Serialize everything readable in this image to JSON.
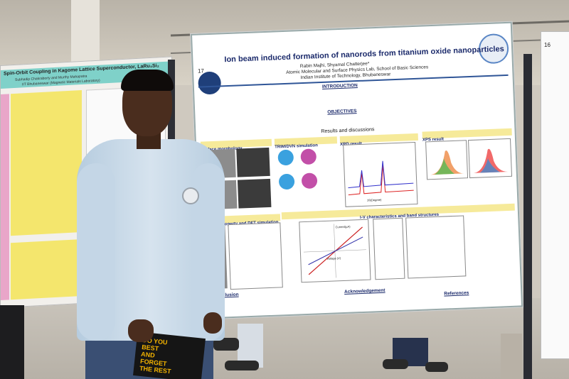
{
  "scene": {
    "description_free": true
  },
  "poster_left": {
    "title": "Spin-Orbit Coupling in Kagome Lattice Superconductor, LaRu₃Si₂",
    "authors": "Subhadip Chakraborty and Murthy Mahapatra",
    "affiliation": "IIT Bhubaneswar (Magnetic Materials Laboratory)"
  },
  "poster_center": {
    "number": "17",
    "title": "Ion beam induced formation of nanorods from titanium oxide nanoparticles",
    "authors": "Rabin Majhi, Shyamal Chatterjee*",
    "lab": "Atomic Molecular and Surface Physics Lab, School of Basic Sciences",
    "institute": "Indian Institute of Technology, Bhubaneswar",
    "sections": {
      "introduction": "INTRODUCTION",
      "objectives": "OBJECTIVES",
      "results": "Results and discussions",
      "surface_morphology": "Surface morphology",
      "trim_simulation": "TRIM/DVN simulation",
      "xrd": "XRD result",
      "xps": "XPS result",
      "wetting": "Wetting property and DFT simulation",
      "iv": "I-V characteristics and band structures",
      "conclusion": "Conclusion",
      "acknowledgement": "Acknowledgement",
      "references": "References"
    },
    "axis_labels": {
      "xrd_x": "2θ(Degree)",
      "iv_x": "Voltage (V)",
      "iv_y": "Current(µA)"
    }
  },
  "poster_right": {
    "number": "16"
  },
  "book": {
    "cover_text": "DO YOU\nBEST\nAND\nFORGET\nTHE REST"
  },
  "colors": {
    "poster_accent": "#1b2a6b",
    "section_band": "#f6ea9a",
    "shirt": "#c4d6e6"
  }
}
